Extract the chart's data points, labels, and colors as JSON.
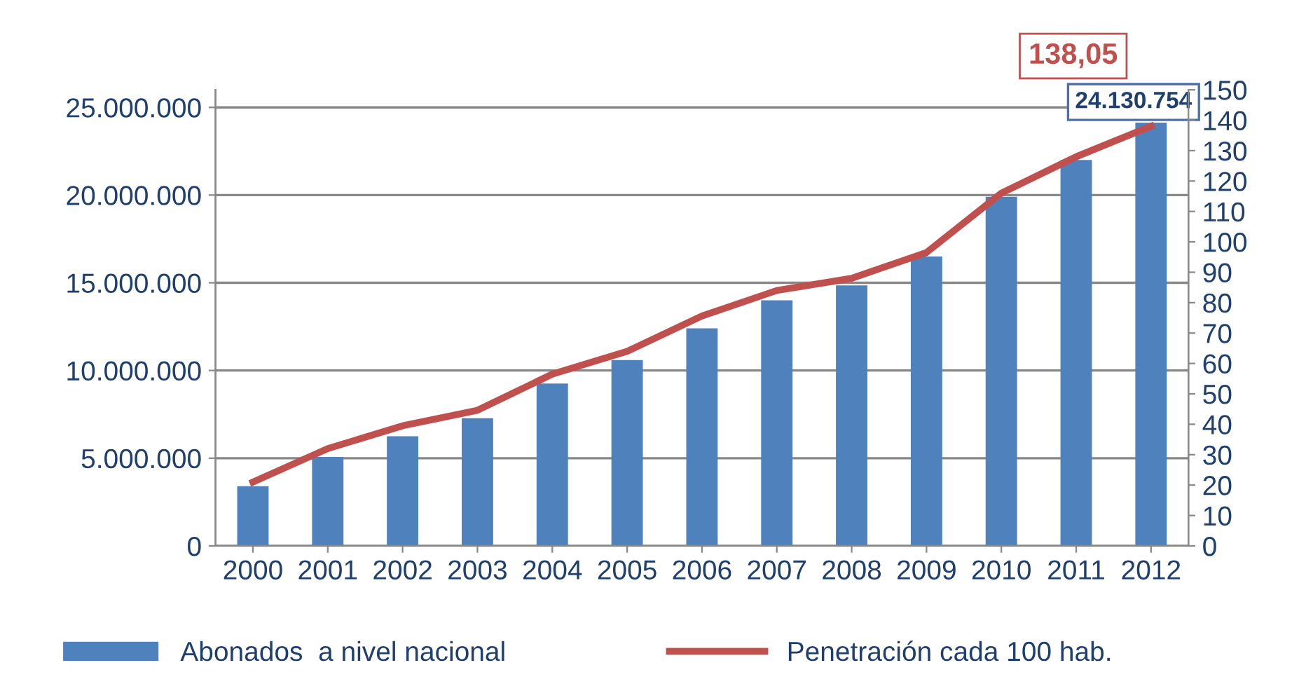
{
  "chart_data": {
    "type": "bar",
    "categories": [
      "2000",
      "2001",
      "2002",
      "2003",
      "2004",
      "2005",
      "2006",
      "2007",
      "2008",
      "2009",
      "2010",
      "2011",
      "2012"
    ],
    "series": [
      {
        "name": "Abonados  a nivel nacional",
        "color": "#4f81bd",
        "values": [
          3400000,
          5070000,
          6250000,
          7280000,
          9260000,
          10600000,
          12400000,
          14000000,
          14850000,
          16500000,
          19900000,
          22000000,
          24130754
        ],
        "value_labels": [
          null,
          null,
          null,
          null,
          null,
          null,
          null,
          null,
          null,
          null,
          null,
          null,
          "24.130.754"
        ]
      },
      {
        "name": "Penetración cada 100 hab.",
        "type": "line",
        "axis": "y2",
        "color": "#c0504d",
        "values": [
          21,
          32,
          39.5,
          44.6,
          56.5,
          64,
          75.6,
          84,
          88,
          96.5,
          116,
          128,
          138.05
        ],
        "value_labels": [
          null,
          null,
          null,
          null,
          null,
          null,
          null,
          null,
          null,
          null,
          null,
          null,
          "138,05"
        ]
      }
    ],
    "ylim": [
      0,
      26000000
    ],
    "yticks": [
      {
        "value": 0,
        "label": "0"
      },
      {
        "value": 5000000,
        "label": "5.000.000"
      },
      {
        "value": 10000000,
        "label": "10.000.000"
      },
      {
        "value": 15000000,
        "label": "15.000.000"
      },
      {
        "value": 20000000,
        "label": "20.000.000"
      },
      {
        "value": 25000000,
        "label": "25.000.000"
      }
    ],
    "y2lim": [
      0,
      150
    ],
    "y2ticks": [
      0,
      10,
      20,
      30,
      40,
      50,
      60,
      70,
      80,
      90,
      100,
      110,
      120,
      130,
      140,
      150
    ],
    "grid": "y",
    "legend": "bottom",
    "marker": "none",
    "line_style": "solid"
  }
}
